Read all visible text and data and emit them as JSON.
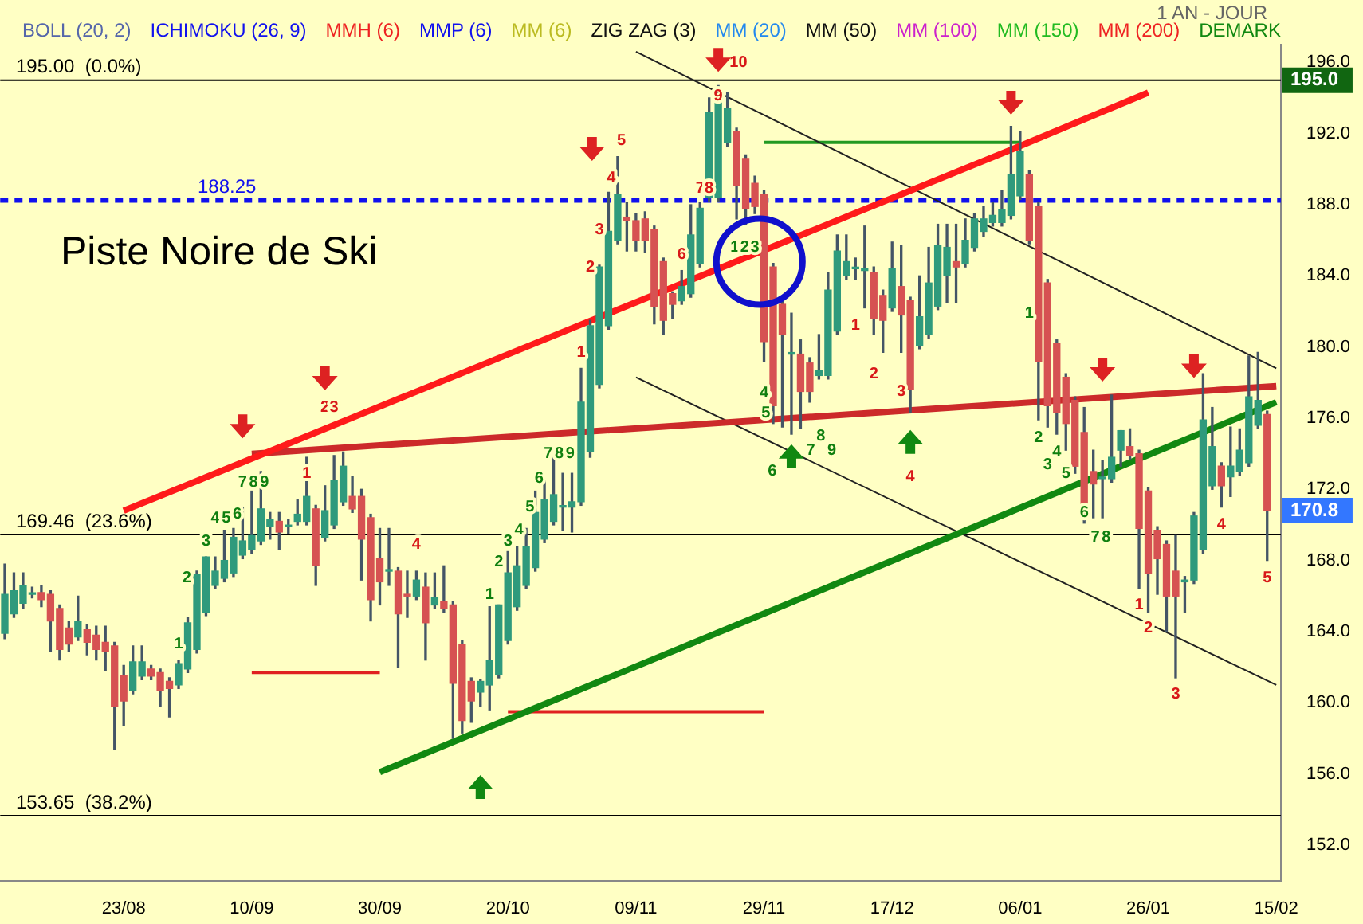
{
  "chart_data": {
    "type": "candlestick",
    "categories": [
      null,
      null,
      null,
      null,
      null,
      null,
      null,
      null,
      null,
      null,
      null,
      null,
      null,
      "23/08",
      null,
      null,
      null,
      null,
      null,
      null,
      null,
      null,
      null,
      null,
      null,
      null,
      null,
      "10/09",
      null,
      null,
      null,
      null,
      null,
      null,
      null,
      null,
      null,
      null,
      null,
      null,
      null,
      "30/09",
      null,
      null,
      null,
      null,
      null,
      null,
      null,
      null,
      null,
      null,
      null,
      null,
      null,
      "20/10",
      null,
      null,
      null,
      null,
      null,
      null,
      null,
      null,
      null,
      null,
      null,
      null,
      null,
      "09/11",
      null,
      null,
      null,
      null,
      null,
      null,
      null,
      null,
      null,
      null,
      null,
      null,
      null,
      "29/11",
      null,
      null,
      null,
      null,
      null,
      null,
      null,
      null,
      null,
      null,
      null,
      null,
      null,
      "17/12",
      null,
      null,
      null,
      null,
      null,
      null,
      null,
      null,
      null,
      null,
      null,
      null,
      null,
      "06/01",
      null,
      null,
      null,
      null,
      null,
      null,
      null,
      null,
      null,
      null,
      null,
      null,
      null,
      "26/01",
      null,
      null,
      null,
      null,
      null,
      null,
      null,
      null,
      null,
      null,
      null,
      null,
      null,
      "15/02"
    ],
    "ohlc": [
      [
        163.9,
        167.8,
        163.6,
        166.1
      ],
      [
        165.0,
        167.3,
        164.8,
        166.3
      ],
      [
        165.6,
        167.3,
        165.3,
        166.6
      ],
      [
        166.1,
        166.5,
        165.9,
        166.1
      ],
      [
        166.2,
        166.6,
        165.4,
        165.8
      ],
      [
        166.1,
        166.3,
        162.9,
        164.6
      ],
      [
        165.3,
        165.5,
        162.4,
        163.0
      ],
      [
        164.2,
        164.6,
        162.9,
        163.3
      ],
      [
        163.7,
        166.0,
        163.5,
        164.6
      ],
      [
        164.1,
        164.4,
        162.7,
        163.4
      ],
      [
        163.8,
        164.3,
        162.4,
        163.0
      ],
      [
        163.4,
        164.3,
        161.8,
        162.9
      ],
      [
        163.2,
        163.4,
        157.4,
        159.8
      ],
      [
        161.5,
        162.1,
        158.7,
        160.1
      ],
      [
        160.7,
        163.2,
        160.5,
        162.3
      ],
      [
        161.5,
        163.2,
        161.3,
        162.3
      ],
      [
        161.9,
        162.1,
        161.3,
        161.5
      ],
      [
        161.7,
        161.9,
        159.8,
        160.7
      ],
      [
        161.2,
        161.4,
        159.2,
        160.8
      ],
      [
        161.0,
        162.4,
        160.8,
        162.2
      ],
      [
        161.9,
        164.8,
        161.7,
        164.5
      ],
      [
        163.0,
        167.4,
        162.8,
        167.2
      ],
      [
        165.1,
        168.2,
        164.9,
        168.2
      ],
      [
        166.6,
        168.2,
        166.4,
        167.4
      ],
      [
        167.0,
        169.7,
        166.8,
        168.0
      ],
      [
        167.3,
        169.8,
        167.1,
        169.3
      ],
      [
        168.3,
        171.0,
        168.1,
        169.1
      ],
      [
        168.6,
        171.9,
        168.4,
        169.4
      ],
      [
        169.1,
        173.0,
        168.9,
        170.9
      ],
      [
        169.9,
        170.7,
        169.2,
        170.3
      ],
      [
        170.2,
        170.7,
        168.6,
        169.6
      ],
      [
        169.9,
        170.3,
        169.5,
        169.9
      ],
      [
        170.2,
        171.4,
        170.0,
        170.6
      ],
      [
        170.2,
        173.8,
        170.0,
        171.6
      ],
      [
        170.9,
        171.1,
        166.6,
        167.7
      ],
      [
        169.3,
        172.2,
        169.1,
        170.8
      ],
      [
        170.0,
        173.9,
        169.8,
        172.5
      ],
      [
        171.3,
        174.1,
        171.1,
        173.3
      ],
      [
        171.6,
        172.7,
        170.7,
        170.9
      ],
      [
        171.6,
        172.0,
        166.9,
        169.2
      ],
      [
        170.4,
        170.6,
        164.6,
        165.8
      ],
      [
        168.1,
        169.8,
        165.5,
        166.8
      ],
      [
        167.4,
        169.8,
        166.6,
        167.4
      ],
      [
        167.4,
        167.6,
        162.0,
        165.0
      ],
      [
        166.1,
        167.4,
        164.8,
        166.0
      ],
      [
        166.0,
        167.4,
        165.8,
        166.9
      ],
      [
        166.5,
        167.3,
        162.4,
        164.5
      ],
      [
        165.5,
        167.3,
        165.3,
        165.9
      ],
      [
        165.7,
        167.7,
        165.1,
        165.3
      ],
      [
        165.5,
        165.7,
        158.0,
        161.1
      ],
      [
        163.3,
        163.5,
        158.3,
        159.0
      ],
      [
        161.2,
        161.4,
        158.9,
        160.1
      ],
      [
        160.6,
        161.3,
        159.8,
        161.2
      ],
      [
        161.0,
        165.4,
        159.6,
        162.4
      ],
      [
        161.6,
        165.5,
        161.4,
        165.5
      ],
      [
        163.5,
        168.5,
        163.3,
        167.3
      ],
      [
        165.4,
        168.8,
        165.2,
        167.7
      ],
      [
        166.6,
        169.8,
        166.4,
        168.8
      ],
      [
        167.6,
        171.9,
        167.4,
        170.7
      ],
      [
        169.2,
        172.5,
        169.0,
        171.4
      ],
      [
        170.2,
        173.8,
        170.0,
        171.7
      ],
      [
        171.0,
        172.9,
        169.7,
        171.0
      ],
      [
        171.0,
        172.9,
        169.6,
        171.3
      ],
      [
        171.3,
        178.8,
        171.1,
        176.9
      ],
      [
        174.1,
        181.5,
        173.8,
        181.2
      ],
      [
        177.9,
        184.6,
        177.7,
        184.5
      ],
      [
        181.2,
        188.7,
        181.0,
        186.5
      ],
      [
        186.0,
        190.7,
        185.8,
        188.6
      ],
      [
        187.3,
        188.1,
        185.4,
        187.1
      ],
      [
        187.1,
        187.5,
        185.4,
        186.0
      ],
      [
        187.2,
        187.6,
        185.3,
        186.0
      ],
      [
        186.6,
        186.8,
        181.3,
        182.3
      ],
      [
        184.8,
        185.0,
        180.7,
        181.5
      ],
      [
        183.0,
        183.1,
        181.6,
        182.4
      ],
      [
        182.6,
        184.3,
        182.4,
        183.4
      ],
      [
        183.0,
        188.0,
        182.8,
        186.3
      ],
      [
        184.7,
        188.1,
        184.5,
        187.8
      ],
      [
        188.4,
        194.0,
        188.2,
        193.2
      ],
      [
        188.4,
        194.7,
        188.2,
        194.0
      ],
      [
        191.5,
        194.3,
        191.3,
        193.4
      ],
      [
        192.1,
        192.3,
        187.2,
        189.1
      ],
      [
        190.6,
        190.8,
        186.9,
        187.8
      ],
      [
        189.2,
        189.6,
        187.5,
        187.9
      ],
      [
        188.6,
        188.8,
        179.2,
        180.3
      ],
      [
        184.5,
        184.7,
        175.7,
        176.7
      ],
      [
        182.4,
        182.6,
        175.5,
        180.7
      ],
      [
        179.6,
        181.9,
        175.1,
        179.6
      ],
      [
        179.6,
        180.4,
        175.4,
        177.5
      ],
      [
        179.1,
        179.4,
        176.9,
        177.5
      ],
      [
        178.4,
        180.7,
        178.2,
        178.7
      ],
      [
        178.4,
        184.2,
        178.2,
        183.2
      ],
      [
        180.9,
        186.3,
        180.7,
        185.4
      ],
      [
        184.0,
        186.3,
        183.8,
        184.8
      ],
      [
        184.4,
        185.0,
        183.8,
        184.4
      ],
      [
        184.3,
        186.8,
        182.2,
        184.3
      ],
      [
        184.2,
        184.5,
        180.7,
        181.6
      ],
      [
        182.9,
        183.2,
        179.7,
        181.5
      ],
      [
        182.2,
        185.9,
        182.0,
        184.4
      ],
      [
        183.4,
        185.7,
        179.7,
        181.8
      ],
      [
        182.6,
        182.8,
        176.3,
        177.6
      ],
      [
        180.1,
        184.0,
        179.9,
        181.7
      ],
      [
        180.7,
        185.6,
        180.5,
        183.6
      ],
      [
        182.3,
        186.9,
        182.1,
        185.7
      ],
      [
        184.0,
        186.9,
        182.5,
        185.6
      ],
      [
        184.8,
        186.9,
        182.5,
        184.5
      ],
      [
        184.7,
        187.2,
        184.5,
        186.0
      ],
      [
        185.6,
        187.5,
        185.4,
        187.2
      ],
      [
        186.5,
        187.9,
        186.2,
        187.2
      ],
      [
        187.0,
        188.1,
        186.8,
        187.4
      ],
      [
        187.0,
        188.8,
        186.8,
        187.7
      ],
      [
        187.4,
        192.4,
        187.2,
        189.7
      ],
      [
        188.5,
        192.1,
        188.3,
        191.0
      ],
      [
        189.7,
        189.9,
        185.8,
        186.0
      ],
      [
        187.9,
        188.1,
        175.9,
        179.2
      ],
      [
        183.6,
        183.8,
        175.5,
        176.7
      ],
      [
        180.2,
        180.4,
        175.1,
        176.3
      ],
      [
        178.3,
        178.5,
        174.2,
        175.7
      ],
      [
        177.0,
        177.2,
        172.9,
        173.3
      ],
      [
        175.2,
        176.6,
        170.1,
        171.0
      ],
      [
        173.0,
        174.2,
        170.4,
        172.3
      ],
      [
        172.6,
        173.6,
        170.4,
        172.6
      ],
      [
        172.6,
        177.3,
        172.4,
        173.8
      ],
      [
        174.2,
        175.3,
        173.3,
        175.3
      ],
      [
        174.4,
        175.4,
        173.7,
        173.9
      ],
      [
        174.0,
        174.2,
        166.4,
        169.8
      ],
      [
        171.9,
        172.1,
        165.1,
        167.3
      ],
      [
        169.7,
        169.9,
        166.1,
        168.1
      ],
      [
        168.9,
        169.1,
        164.0,
        166.0
      ],
      [
        167.4,
        169.4,
        161.4,
        166.0
      ],
      [
        166.8,
        167.1,
        165.1,
        166.9
      ],
      [
        166.9,
        170.7,
        166.7,
        170.5
      ],
      [
        168.6,
        178.5,
        168.4,
        175.9
      ],
      [
        172.2,
        176.6,
        172.0,
        174.4
      ],
      [
        173.3,
        173.5,
        171.0,
        172.2
      ],
      [
        172.7,
        175.5,
        171.6,
        173.3
      ],
      [
        173.0,
        175.4,
        172.8,
        174.2
      ],
      [
        173.5,
        179.5,
        173.3,
        177.2
      ],
      [
        175.6,
        179.7,
        175.4,
        177.0
      ],
      [
        176.2,
        176.4,
        168.0,
        170.8
      ],
      null
    ],
    "series": [
      {
        "type": "line",
        "x": [
          "23/08",
          "06/01",
          "26/01"
        ],
        "values": [
          170.8,
          191.3,
          194.3
        ],
        "color": "#ff1a1a"
      },
      {
        "type": "line",
        "x": [
          "30/09",
          "15/02"
        ],
        "values": [
          156.1,
          176.9
        ],
        "color": "#118811"
      },
      {
        "type": "line",
        "x": [
          "10/09",
          "15/02"
        ],
        "values": [
          174.0,
          177.8
        ],
        "color": "#cc2a2a"
      },
      {
        "type": "line",
        "x": [
          "09/11",
          "15/02"
        ],
        "values": [
          196.6,
          178.8
        ],
        "color": "#222222"
      },
      {
        "type": "line",
        "x": [
          "09/11",
          "15/02"
        ],
        "values": [
          178.3,
          161.0
        ],
        "color": "#222222"
      },
      {
        "type": "line",
        "x": [
          "29/11",
          "06/01"
        ],
        "values": [
          191.5,
          191.5
        ],
        "color": "#229922"
      },
      {
        "type": "line",
        "x": [
          "10/09",
          "30/09"
        ],
        "values": [
          161.7,
          161.7
        ],
        "color": "#e02020"
      },
      {
        "type": "line",
        "x": [
          "20/10",
          "29/11"
        ],
        "values": [
          159.5,
          159.5
        ],
        "color": "#e02020"
      }
    ],
    "ref_lines": [
      {
        "axis": "y",
        "value": 195,
        "label": "195.00  (0.0%)",
        "color": "#000000"
      },
      {
        "axis": "y",
        "value": 188.25,
        "label": "188.25",
        "color": "#1010ee",
        "line_style": "dotted"
      },
      {
        "axis": "y",
        "value": 169.46,
        "label": "169.46  (23.6%)",
        "color": "#000000"
      },
      {
        "axis": "y",
        "value": 153.65,
        "label": "153.65  (38.2%)",
        "color": "#000000"
      }
    ],
    "annotations": [
      "Piste Noire de Ski",
      "BOLL (20, 2)",
      "ICHIMOKU (26, 9)",
      "MMH (6)",
      "MMP (6)",
      "MM (6)",
      "ZIG ZAG (3)",
      "MM (20)",
      "MM (50)",
      "MM (100)",
      "MM (150)",
      "MM (200)",
      "DEMARK",
      "1 AN - JOUR",
      "1",
      "2",
      "3",
      "4",
      "1",
      "2",
      "3",
      "4",
      "5",
      "6",
      "7",
      "8",
      "9",
      "10",
      "1",
      "2",
      "3",
      "4",
      "1",
      "2",
      "3",
      "4",
      "5",
      "1",
      "2",
      "3",
      "4",
      "5",
      "6",
      "7",
      "8",
      "9",
      "1",
      "2",
      "3",
      "4",
      "5",
      "6",
      "7",
      "8",
      "9",
      "1",
      "2",
      "3",
      "4",
      "5",
      "6",
      "7",
      "8",
      "9",
      "1",
      "2",
      "3",
      "4",
      "5",
      "6",
      "7",
      "8",
      {
        "text": "195.0",
        "y": 195
      },
      {
        "text": "170.8",
        "y": 170.8
      }
    ],
    "ylim": [
      150,
      197
    ],
    "yticks": [
      {
        "value": 152,
        "label": "152.0"
      },
      {
        "value": 156,
        "label": "156.0"
      },
      {
        "value": 160,
        "label": "160.0"
      },
      {
        "value": 164,
        "label": "164.0"
      },
      {
        "value": 168,
        "label": "168.0"
      },
      {
        "value": 172,
        "label": "172.0"
      },
      {
        "value": 176,
        "label": "176.0"
      },
      {
        "value": 180,
        "label": "180.0"
      },
      {
        "value": 184,
        "label": "184.0"
      },
      {
        "value": 188,
        "label": "188.0"
      },
      {
        "value": 192,
        "label": "192.0"
      },
      {
        "value": 196,
        "label": "196.0"
      }
    ],
    "grid": false,
    "legend": false
  }
}
